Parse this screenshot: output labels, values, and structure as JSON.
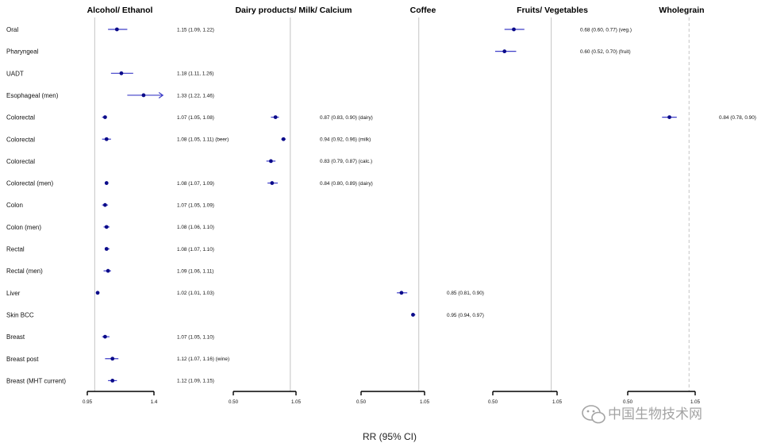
{
  "chart_data": {
    "type": "forest",
    "axis_title": "RR (95% CI)",
    "outcomes": [
      "Oral",
      "Pharyngeal",
      "UADT",
      "Esophageal (men)",
      "Colorectal",
      "Colorectal",
      "Colorectal",
      "Colorectal (men)",
      "Colon",
      "Colon (men)",
      "Rectal",
      "Rectal (men)",
      "Liver",
      "Skin BCC",
      "Breast",
      "Breast post",
      "Breast (MHT current)"
    ],
    "panels": [
      {
        "title": "Alcohol/ Ethanol",
        "xlim": [
          0.95,
          1.4
        ],
        "ticks": [
          "0.95",
          "1.4"
        ],
        "null_value": 1,
        "estimates": [
          {
            "row": 0,
            "rr": 1.15,
            "lo": 1.09,
            "hi": 1.22,
            "label": "1.15 (1.09, 1.22)"
          },
          {
            "row": 2,
            "rr": 1.18,
            "lo": 1.11,
            "hi": 1.26,
            "label": "1.18 (1.11, 1.26)"
          },
          {
            "row": 3,
            "rr": 1.33,
            "lo": 1.22,
            "hi": 1.46,
            "label": "1.33 (1.22, 1.46)",
            "truncated": true
          },
          {
            "row": 4,
            "rr": 1.07,
            "lo": 1.05,
            "hi": 1.08,
            "label": "1.07 (1.05, 1.08)"
          },
          {
            "row": 5,
            "rr": 1.08,
            "lo": 1.05,
            "hi": 1.11,
            "label": "1.08 (1.05, 1.11) (beer)"
          },
          {
            "row": 7,
            "rr": 1.08,
            "lo": 1.07,
            "hi": 1.09,
            "label": "1.08 (1.07, 1.09)"
          },
          {
            "row": 8,
            "rr": 1.07,
            "lo": 1.05,
            "hi": 1.09,
            "label": "1.07 (1.05, 1.09)"
          },
          {
            "row": 9,
            "rr": 1.08,
            "lo": 1.06,
            "hi": 1.1,
            "label": "1.08 (1.06, 1.10)"
          },
          {
            "row": 10,
            "rr": 1.08,
            "lo": 1.07,
            "hi": 1.1,
            "label": "1.08 (1.07, 1.10)"
          },
          {
            "row": 11,
            "rr": 1.09,
            "lo": 1.06,
            "hi": 1.11,
            "label": "1.09 (1.06, 1.11)"
          },
          {
            "row": 12,
            "rr": 1.02,
            "lo": 1.01,
            "hi": 1.03,
            "label": "1.02 (1.01, 1.03)"
          },
          {
            "row": 14,
            "rr": 1.07,
            "lo": 1.05,
            "hi": 1.1,
            "label": "1.07 (1.05, 1.10)"
          },
          {
            "row": 15,
            "rr": 1.12,
            "lo": 1.07,
            "hi": 1.16,
            "label": "1.12 (1.07, 1.16) (wine)"
          },
          {
            "row": 16,
            "rr": 1.12,
            "lo": 1.09,
            "hi": 1.15,
            "label": "1.12 (1.09, 1.15)"
          }
        ]
      },
      {
        "title": "Dairy products/ Milk/ Calcium",
        "xlim": [
          0.5,
          1.05
        ],
        "ticks": [
          "0.50",
          "1.05"
        ],
        "null_value": 1,
        "estimates": [
          {
            "row": 4,
            "rr": 0.87,
            "lo": 0.83,
            "hi": 0.9,
            "label": "0.87 (0.83, 0.90) (dairy)"
          },
          {
            "row": 5,
            "rr": 0.94,
            "lo": 0.92,
            "hi": 0.96,
            "label": "0.94 (0.92, 0.96) (milk)"
          },
          {
            "row": 6,
            "rr": 0.83,
            "lo": 0.79,
            "hi": 0.87,
            "label": "0.83 (0.79, 0.87) (calc.)"
          },
          {
            "row": 7,
            "rr": 0.84,
            "lo": 0.8,
            "hi": 0.89,
            "label": "0.84 (0.80, 0.89) (dairy)"
          }
        ]
      },
      {
        "title": "Coffee",
        "xlim": [
          0.5,
          1.05
        ],
        "ticks": [
          "0.50",
          "1.05"
        ],
        "null_value": 1,
        "estimates": [
          {
            "row": 12,
            "rr": 0.85,
            "lo": 0.81,
            "hi": 0.9,
            "label": "0.85 (0.81, 0.90)"
          },
          {
            "row": 13,
            "rr": 0.95,
            "lo": 0.94,
            "hi": 0.97,
            "label": "0.95 (0.94, 0.97)"
          }
        ]
      },
      {
        "title": "Fruits/ Vegetables",
        "xlim": [
          0.5,
          1.05
        ],
        "ticks": [
          "0.50",
          "1.05"
        ],
        "null_value": 1,
        "estimates": [
          {
            "row": 0,
            "rr": 0.68,
            "lo": 0.6,
            "hi": 0.77,
            "label": "0.68 (0.60, 0.77) (veg.)"
          },
          {
            "row": 1,
            "rr": 0.6,
            "lo": 0.52,
            "hi": 0.7,
            "label": "0.60 (0.52, 0.70) (fruit)"
          }
        ]
      },
      {
        "title": "Wholegrain",
        "xlim": [
          0.5,
          1.05
        ],
        "ticks": [
          "0.50",
          "1.05"
        ],
        "null_value": 1,
        "null_dashed": true,
        "estimates": [
          {
            "row": 4,
            "rr": 0.84,
            "lo": 0.78,
            "hi": 0.9,
            "label": "0.84 (0.78, 0.90)"
          }
        ]
      }
    ],
    "colors": {
      "marker": "#0b0b8a",
      "ci_line": "#3d3dc8",
      "null_line": "#c4c4c4",
      "axis": "#000000"
    },
    "grid": false,
    "legend": "none"
  },
  "watermark": {
    "text": "中国生物技术网",
    "icon": "wechat-icon"
  }
}
